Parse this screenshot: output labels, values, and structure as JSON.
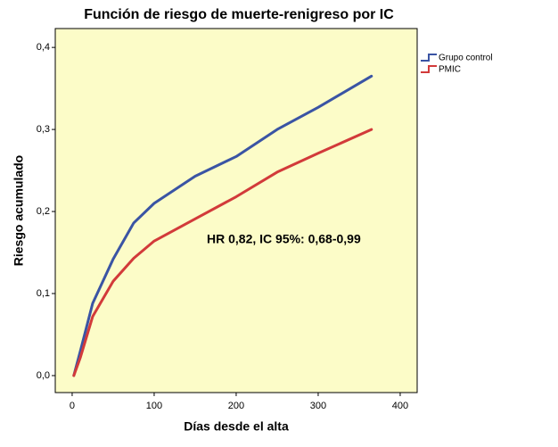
{
  "chart_data": {
    "type": "line",
    "title": "Función de riesgo de muerte-renigreso por IC",
    "x_label": "Días desde el alta",
    "y_label": "Riesgo acumulado",
    "annotation": "HR 0,82, IC 95%: 0,68-0,99",
    "x": [
      2,
      10,
      25,
      50,
      75,
      100,
      150,
      200,
      250,
      300,
      365
    ],
    "series": [
      {
        "name": "Grupo control",
        "color": "#3a54a4",
        "values": [
          0,
          0.03,
          0.088,
          0.142,
          0.186,
          0.21,
          0.243,
          0.267,
          0.3,
          0.327,
          0.365
        ]
      },
      {
        "name": "PMIC",
        "color": "#d23a3a",
        "values": [
          0,
          0.022,
          0.072,
          0.115,
          0.143,
          0.164,
          0.191,
          0.218,
          0.248,
          0.271,
          0.3
        ]
      }
    ],
    "xlim": [
      -20.6,
      420.7
    ],
    "ylim": [
      -0.0207,
      0.423
    ],
    "xticks": [
      0,
      100,
      200,
      300,
      400
    ],
    "yticks": [
      {
        "value": 0,
        "label": "0,0"
      },
      {
        "value": 0.1,
        "label": "0,1"
      },
      {
        "value": 0.2,
        "label": "0,2"
      },
      {
        "value": 0.3,
        "label": "0,3"
      },
      {
        "value": 0.4,
        "label": "0,4"
      }
    ],
    "background": "#fcfcc8",
    "legend": "right"
  }
}
